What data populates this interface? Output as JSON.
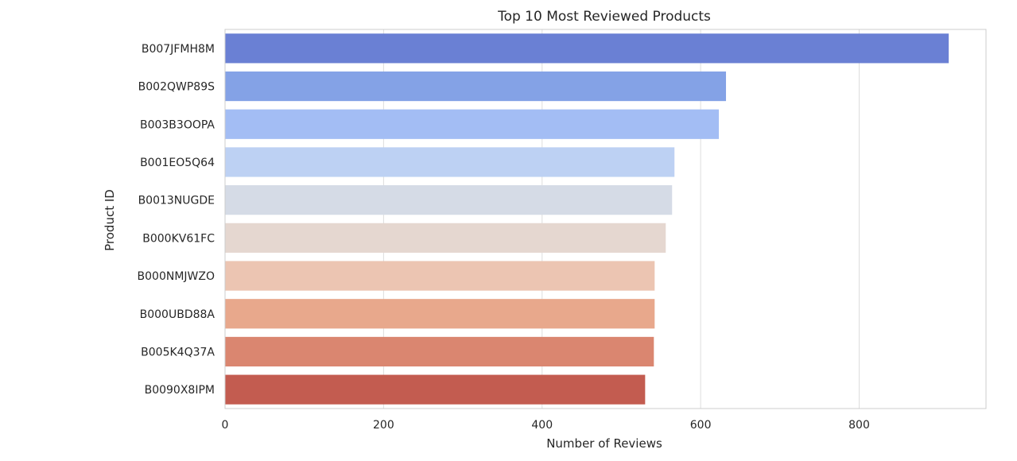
{
  "chart_data": {
    "type": "bar",
    "orientation": "horizontal",
    "title": "Top 10 Most Reviewed Products",
    "xlabel": "Number of Reviews",
    "ylabel": "Product ID",
    "categories": [
      "B007JFMH8M",
      "B002QWP89S",
      "B003B3OOPA",
      "B001EO5Q64",
      "B0013NUGDE",
      "B000KV61FC",
      "B000NMJWZO",
      "B000UBD88A",
      "B005K4Q37A",
      "B0090X8IPM"
    ],
    "values": [
      913,
      632,
      623,
      567,
      564,
      556,
      542,
      542,
      541,
      530
    ],
    "xlim": [
      0,
      960
    ],
    "xticks": [
      0,
      200,
      400,
      600,
      800
    ],
    "grid": true,
    "colors": [
      "#6a80d4",
      "#84a2e6",
      "#a3bdf4",
      "#bdd1f3",
      "#d5dbe6",
      "#e5d7d0",
      "#ecc5b2",
      "#e8a88c",
      "#da8670",
      "#c35c50"
    ]
  }
}
